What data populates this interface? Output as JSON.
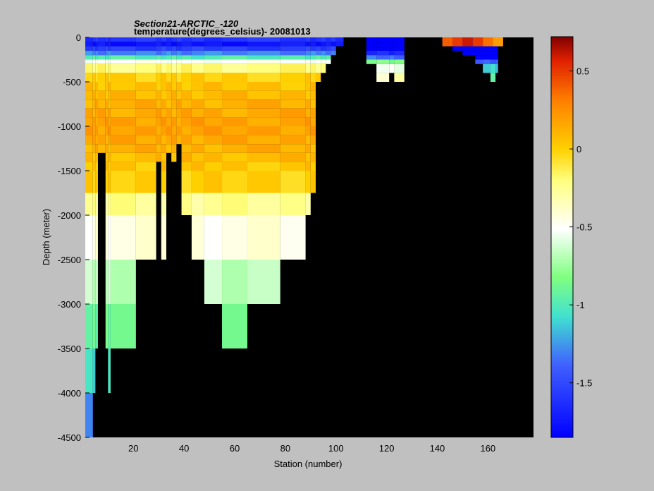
{
  "chart_data": {
    "type": "heatmap",
    "title_line1": "Section21-ARCTIC_-120",
    "title_line2": "temperature(degrees_celsius)- 20081013",
    "xlabel": "Station (number)",
    "ylabel": "Depth (meter)",
    "xlim": [
      1,
      178
    ],
    "ylim": [
      -4500,
      0
    ],
    "x_ticks": [
      20,
      40,
      60,
      80,
      100,
      120,
      140,
      160
    ],
    "y_ticks": [
      0,
      -500,
      -1000,
      -1500,
      -2000,
      -2500,
      -3000,
      -3500,
      -4000,
      -4500
    ],
    "colorbar": {
      "range": [
        -1.85,
        0.72
      ],
      "ticks": [
        0.5,
        0,
        -0.5,
        -1,
        -1.5
      ],
      "colormap": "jet-like"
    },
    "background_color": "#000000",
    "depth_levels": [
      0,
      50,
      100,
      150,
      200,
      250,
      300,
      400,
      500,
      600,
      700,
      800,
      900,
      1000,
      1100,
      1200,
      1300,
      1400,
      1500,
      1750,
      2000,
      2500,
      3000,
      3500,
      4000,
      4500
    ],
    "layer_temps": [
      -1.6,
      -1.75,
      -1.55,
      -1.3,
      -1.0,
      -0.5,
      -0.2,
      0.0,
      0.05,
      0.08,
      0.12,
      0.15,
      0.18,
      0.18,
      0.15,
      0.12,
      0.08,
      0.04,
      0.0,
      -0.25,
      -0.45,
      -0.65,
      -0.9,
      -1.1,
      -1.3
    ],
    "columns": [
      {
        "x0": 1,
        "x1": 4,
        "maxDepth": 4500
      },
      {
        "x0": 4,
        "x1": 5,
        "maxDepth": 4000
      },
      {
        "x0": 5,
        "x1": 6,
        "maxDepth": 3500
      },
      {
        "x0": 6,
        "x1": 9,
        "maxDepth": 1300
      },
      {
        "x0": 9,
        "x1": 10,
        "maxDepth": 3500
      },
      {
        "x0": 10,
        "x1": 11,
        "maxDepth": 4000
      },
      {
        "x0": 11,
        "x1": 21,
        "maxDepth": 3500
      },
      {
        "x0": 21,
        "x1": 29,
        "maxDepth": 2500
      },
      {
        "x0": 29,
        "x1": 31,
        "maxDepth": 1400
      },
      {
        "x0": 31,
        "x1": 33,
        "maxDepth": 2500
      },
      {
        "x0": 33,
        "x1": 35,
        "maxDepth": 1300
      },
      {
        "x0": 35,
        "x1": 37,
        "maxDepth": 1400
      },
      {
        "x0": 37,
        "x1": 39,
        "maxDepth": 1200
      },
      {
        "x0": 39,
        "x1": 43,
        "maxDepth": 2000
      },
      {
        "x0": 43,
        "x1": 48,
        "maxDepth": 2500
      },
      {
        "x0": 48,
        "x1": 55,
        "maxDepth": 3000
      },
      {
        "x0": 55,
        "x1": 65,
        "maxDepth": 3500
      },
      {
        "x0": 65,
        "x1": 78,
        "maxDepth": 3000
      },
      {
        "x0": 78,
        "x1": 88,
        "maxDepth": 2500
      },
      {
        "x0": 88,
        "x1": 90,
        "maxDepth": 2000
      },
      {
        "x0": 90,
        "x1": 92,
        "maxDepth": 1750
      },
      {
        "x0": 92,
        "x1": 94,
        "maxDepth": 500
      },
      {
        "x0": 94,
        "x1": 96,
        "maxDepth": 400
      },
      {
        "x0": 96,
        "x1": 98,
        "maxDepth": 300
      },
      {
        "x0": 98,
        "x1": 100,
        "maxDepth": 200
      },
      {
        "x0": 100,
        "x1": 103,
        "maxDepth": 100
      },
      {
        "x0": 112,
        "x1": 116,
        "maxDepth": 300
      },
      {
        "x0": 116,
        "x1": 121,
        "maxDepth": 500
      },
      {
        "x0": 121,
        "x1": 123,
        "maxDepth": 400
      },
      {
        "x0": 123,
        "x1": 127,
        "maxDepth": 500
      },
      {
        "x0": 142,
        "x1": 146,
        "maxDepth": 100
      },
      {
        "x0": 146,
        "x1": 150,
        "maxDepth": 150
      },
      {
        "x0": 150,
        "x1": 155,
        "maxDepth": 200
      },
      {
        "x0": 155,
        "x1": 158,
        "maxDepth": 300
      },
      {
        "x0": 158,
        "x1": 161,
        "maxDepth": 400
      },
      {
        "x0": 161,
        "x1": 163,
        "maxDepth": 500
      },
      {
        "x0": 163,
        "x1": 164,
        "maxDepth": 400
      },
      {
        "x0": 164,
        "x1": 166,
        "maxDepth": 100
      }
    ],
    "surface_patch": {
      "x0": 142,
      "x1": 166,
      "depth0": 0,
      "depth1": 100,
      "temps": [
        0.4,
        0.5,
        0.6,
        0.5,
        0.35,
        0.2
      ]
    }
  }
}
